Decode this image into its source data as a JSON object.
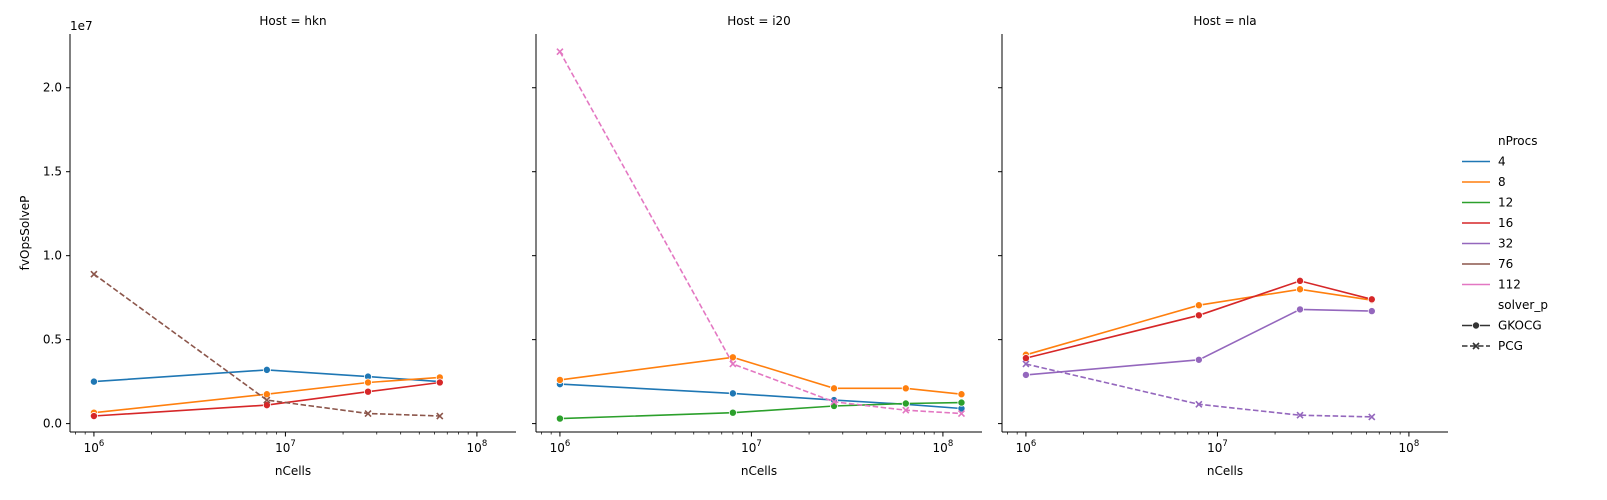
{
  "chart_data": {
    "type": "line",
    "xlabel": "nCells",
    "ylabel": "fvOpsSolveP",
    "y_offset_label": "1e7",
    "xscale": "log",
    "xlim": [
      750000,
      160000000
    ],
    "ylim": [
      -0.05,
      2.32
    ],
    "x_tick_labels": [
      {
        "value": 1000000,
        "base": "10",
        "exp": "6"
      },
      {
        "value": 10000000,
        "base": "10",
        "exp": "7"
      },
      {
        "value": 100000000,
        "base": "10",
        "exp": "8"
      }
    ],
    "y_ticks": [
      {
        "value": 0.0,
        "label": "0.0"
      },
      {
        "value": 0.5,
        "label": "0.5"
      },
      {
        "value": 1.0,
        "label": "1.0"
      },
      {
        "value": 1.5,
        "label": "1.5"
      },
      {
        "value": 2.0,
        "label": "2.0"
      }
    ],
    "legend": {
      "placement": "right",
      "hue_title": "nProcs",
      "hue_entries": [
        {
          "label": "4",
          "color": "#1f77b4"
        },
        {
          "label": "8",
          "color": "#ff7f0e"
        },
        {
          "label": "12",
          "color": "#2ca02c"
        },
        {
          "label": "16",
          "color": "#d62728"
        },
        {
          "label": "32",
          "color": "#9467bd"
        },
        {
          "label": "76",
          "color": "#8c564b"
        },
        {
          "label": "112",
          "color": "#e377c2"
        }
      ],
      "style_title": "solver_p",
      "style_entries": [
        {
          "label": "GKOCG",
          "marker": "circle",
          "dash": "solid"
        },
        {
          "label": "PCG",
          "marker": "x",
          "dash": "dashed"
        }
      ]
    },
    "panels": [
      {
        "title": "Host = hkn",
        "series": [
          {
            "nProcs": "4",
            "solver": "GKOCG",
            "x": [
              1000000,
              8000000,
              27000000,
              64000000
            ],
            "y": [
              0.25,
              0.32,
              0.28,
              0.25
            ]
          },
          {
            "nProcs": "8",
            "solver": "GKOCG",
            "x": [
              1000000,
              8000000,
              27000000,
              64000000
            ],
            "y": [
              0.065,
              0.175,
              0.245,
              0.275
            ]
          },
          {
            "nProcs": "16",
            "solver": "GKOCG",
            "x": [
              1000000,
              8000000,
              27000000,
              64000000
            ],
            "y": [
              0.045,
              0.11,
              0.19,
              0.245
            ]
          },
          {
            "nProcs": "76",
            "solver": "PCG",
            "x": [
              1000000,
              8000000,
              27000000,
              64000000
            ],
            "y": [
              0.89,
              0.14,
              0.06,
              0.045
            ]
          }
        ]
      },
      {
        "title": "Host = i20",
        "series": [
          {
            "nProcs": "4",
            "solver": "GKOCG",
            "x": [
              1000000,
              8000000,
              27000000,
              64000000,
              125000000
            ],
            "y": [
              0.235,
              0.18,
              0.14,
              0.115,
              0.09
            ]
          },
          {
            "nProcs": "8",
            "solver": "GKOCG",
            "x": [
              1000000,
              8000000,
              27000000,
              64000000,
              125000000
            ],
            "y": [
              0.26,
              0.395,
              0.21,
              0.21,
              0.175
            ]
          },
          {
            "nProcs": "12",
            "solver": "GKOCG",
            "x": [
              1000000,
              8000000,
              27000000,
              64000000,
              125000000
            ],
            "y": [
              0.03,
              0.065,
              0.105,
              0.12,
              0.125
            ]
          },
          {
            "nProcs": "112",
            "solver": "PCG",
            "x": [
              1000000,
              8000000,
              27000000,
              64000000,
              125000000
            ],
            "y": [
              2.215,
              0.355,
              0.13,
              0.08,
              0.06
            ]
          }
        ]
      },
      {
        "title": "Host = nla",
        "series": [
          {
            "nProcs": "8",
            "solver": "GKOCG",
            "x": [
              1000000,
              8000000,
              27000000,
              64000000
            ],
            "y": [
              0.41,
              0.705,
              0.8,
              0.735
            ]
          },
          {
            "nProcs": "16",
            "solver": "GKOCG",
            "x": [
              1000000,
              8000000,
              27000000,
              64000000
            ],
            "y": [
              0.39,
              0.645,
              0.85,
              0.74
            ]
          },
          {
            "nProcs": "32",
            "solver": "GKOCG",
            "x": [
              1000000,
              8000000,
              27000000,
              64000000
            ],
            "y": [
              0.29,
              0.38,
              0.68,
              0.67
            ]
          },
          {
            "nProcs": "32",
            "solver": "PCG",
            "x": [
              1000000,
              8000000,
              27000000,
              64000000
            ],
            "y": [
              0.355,
              0.115,
              0.05,
              0.04
            ]
          }
        ]
      }
    ]
  }
}
